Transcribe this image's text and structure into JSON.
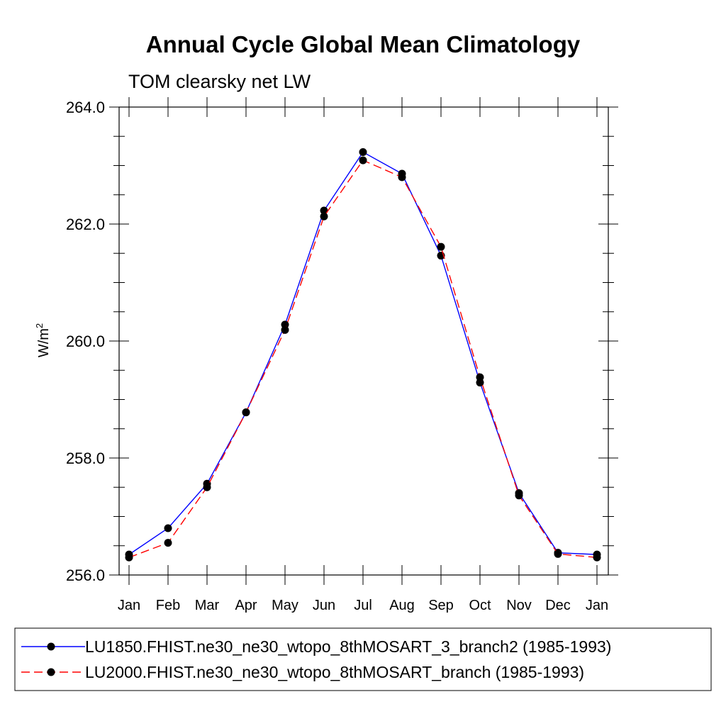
{
  "chart_data": {
    "type": "line",
    "title": "Annual Cycle Global Mean Climatology",
    "subtitle": "TOM clearsky net LW",
    "xlabel": "",
    "ylabel": "W/m",
    "ylabel_superscript": "2",
    "categories": [
      "Jan",
      "Feb",
      "Mar",
      "Apr",
      "May",
      "Jun",
      "Jul",
      "Aug",
      "Sep",
      "Oct",
      "Nov",
      "Dec",
      "Jan"
    ],
    "ylim": [
      256.0,
      264.0
    ],
    "yticks": [
      "256.0",
      "258.0",
      "260.0",
      "262.0",
      "264.0"
    ],
    "grid": false,
    "legend_position": "bottom",
    "series": [
      {
        "name": "LU1850.FHIST.ne30_ne30_wtopo_8thMOSART_3_branch2 (1985-1993)",
        "color": "#0000ff",
        "dash": "solid",
        "marker": "filled-circle",
        "values": [
          256.35,
          256.8,
          257.56,
          258.78,
          260.28,
          262.23,
          263.23,
          262.86,
          261.46,
          259.29,
          257.4,
          256.38,
          256.35
        ]
      },
      {
        "name": "LU2000.FHIST.ne30_ne30_wtopo_8thMOSART_branch (1985-1993)",
        "color": "#ff0000",
        "dash": "dashed",
        "marker": "filled-circle",
        "values": [
          256.3,
          256.55,
          257.5,
          258.78,
          260.19,
          262.13,
          263.09,
          262.8,
          261.61,
          259.38,
          257.36,
          256.36,
          256.3
        ]
      }
    ]
  }
}
